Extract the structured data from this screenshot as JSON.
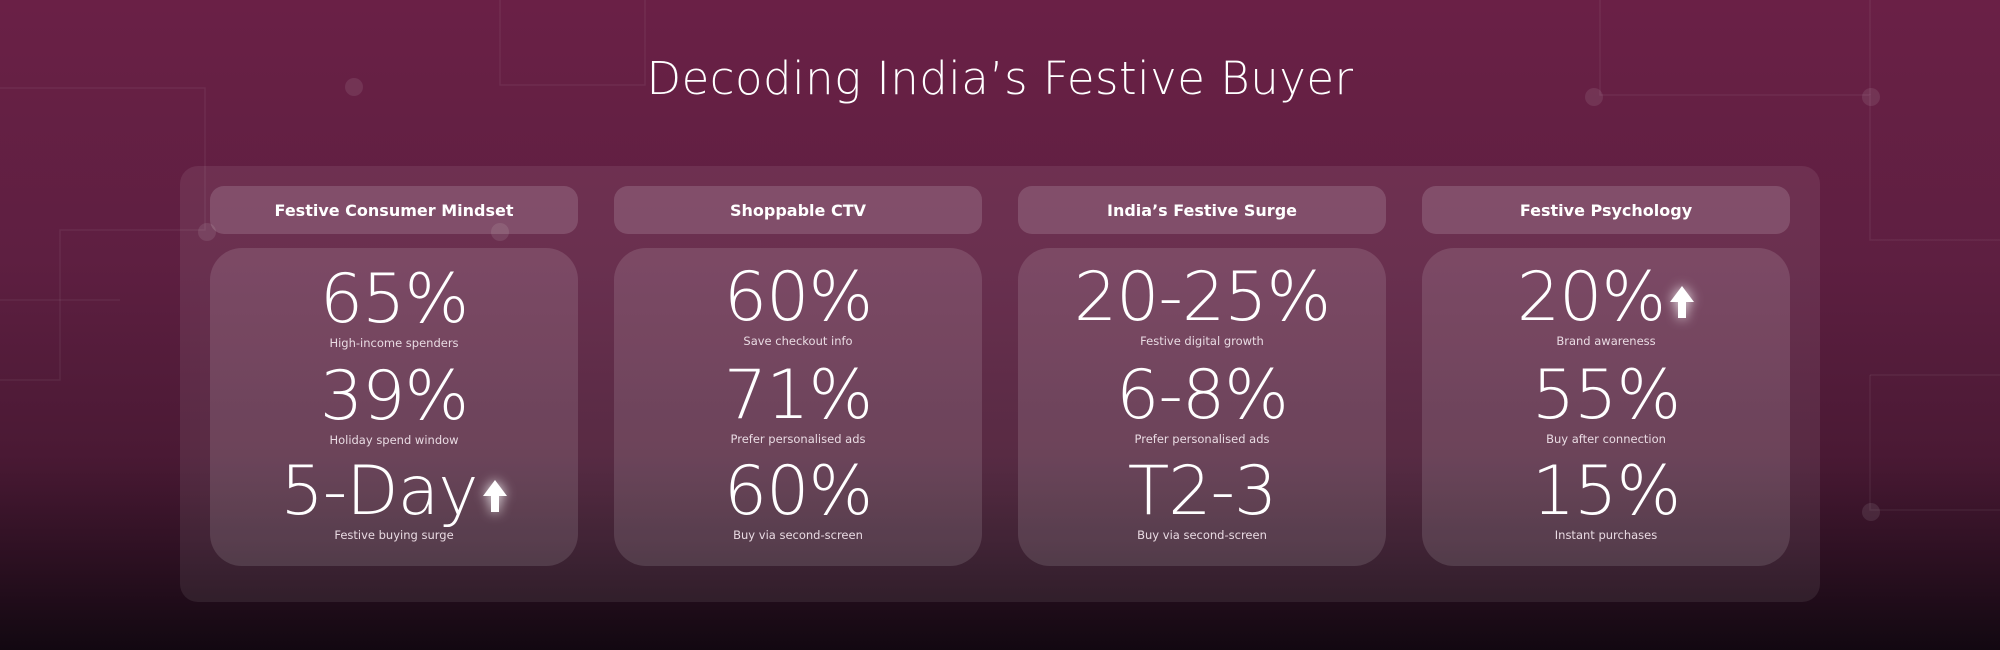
{
  "title": "Decoding India’s Festive Buyer",
  "columns": [
    {
      "header": "Festive Consumer Mindset",
      "stats": [
        {
          "value": "65%",
          "label": "High-income spenders",
          "arrow": false
        },
        {
          "value": "39%",
          "label": "Holiday spend window",
          "arrow": false
        },
        {
          "value": "5-Day",
          "label": "Festive buying surge",
          "arrow": true
        }
      ]
    },
    {
      "header": "Shoppable CTV",
      "stats": [
        {
          "value": "60%",
          "label": "Save checkout info",
          "arrow": false
        },
        {
          "value": "71%",
          "label": "Prefer personalised ads",
          "arrow": false
        },
        {
          "value": "60%",
          "label": "Buy via second-screen",
          "arrow": false
        }
      ]
    },
    {
      "header": "India’s Festive Surge",
      "stats": [
        {
          "value": "20-25%",
          "label": "Festive digital growth",
          "arrow": false
        },
        {
          "value": "6-8%",
          "label": "Prefer personalised ads",
          "arrow": false
        },
        {
          "value": "T2-3",
          "label": "Buy via second-screen",
          "arrow": false
        }
      ]
    },
    {
      "header": "Festive Psychology",
      "stats": [
        {
          "value": "20%",
          "label": "Brand awareness",
          "arrow": true
        },
        {
          "value": "55%",
          "label": "Buy after connection",
          "arrow": false
        },
        {
          "value": "15%",
          "label": "Instant purchases",
          "arrow": false
        }
      ]
    }
  ],
  "icons": {
    "increase": "arrow-up-icon"
  },
  "colors": {
    "background_top": "#6a2046",
    "background_bottom": "#120811",
    "text": "#ffffff"
  }
}
